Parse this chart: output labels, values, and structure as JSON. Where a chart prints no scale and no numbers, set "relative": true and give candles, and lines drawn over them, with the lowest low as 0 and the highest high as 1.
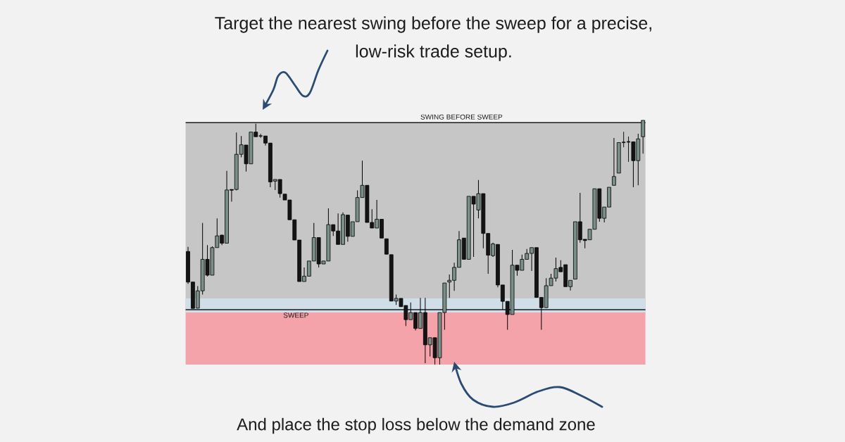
{
  "chart_data": {
    "type": "candlestick",
    "title": "Target the nearest swing before the sweep for a precise, low-risk trade setup.",
    "annotations": [
      "And place the stop loss below the demand zone"
    ],
    "relative": true,
    "categories": [
      null,
      null,
      null,
      null,
      null,
      null,
      null,
      null,
      null,
      null,
      null,
      null,
      null,
      null,
      null,
      null,
      null,
      null,
      null,
      null,
      null,
      null,
      null,
      null,
      null,
      null,
      null,
      null,
      null,
      null,
      null,
      null,
      null,
      null,
      null,
      null,
      null,
      null,
      null,
      null,
      null,
      null,
      null,
      null,
      null,
      null,
      null,
      null,
      null,
      null,
      null,
      null,
      null,
      null,
      null,
      null,
      null,
      null,
      null,
      null,
      null,
      null,
      null,
      null,
      null,
      null,
      null,
      null,
      null,
      null,
      null,
      null,
      null,
      null,
      null,
      null,
      null,
      null,
      null,
      null,
      null,
      null,
      null,
      null,
      null,
      null,
      null,
      null,
      null,
      null,
      null,
      null,
      null,
      null,
      null
    ],
    "ohlc": [
      [
        0.463,
        0.482,
        0.331,
        0.338
      ],
      [
        0.338,
        0.338,
        0.23,
        0.23
      ],
      [
        0.231,
        0.321,
        0.23,
        0.302
      ],
      [
        0.302,
        0.58,
        0.287,
        0.431
      ],
      [
        0.431,
        0.489,
        0.361,
        0.366
      ],
      [
        0.366,
        0.484,
        0.366,
        0.479
      ],
      [
        0.479,
        0.599,
        0.479,
        0.527
      ],
      [
        0.53,
        0.532,
        0.489,
        0.497
      ],
      [
        0.497,
        0.793,
        0.497,
        0.715
      ],
      [
        0.717,
        0.717,
        0.667,
        0.714
      ],
      [
        0.717,
        0.95,
        0.713,
        0.861
      ],
      [
        0.861,
        0.936,
        0.849,
        0.9
      ],
      [
        0.899,
        0.899,
        0.79,
        0.822
      ],
      [
        0.822,
        0.952,
        0.822,
        0.952
      ],
      [
        0.952,
        0.986,
        0.933,
        0.933
      ],
      [
        0.936,
        0.945,
        0.928,
        0.936
      ],
      [
        0.936,
        0.936,
        0.897,
        0.907
      ],
      [
        0.907,
        0.907,
        0.726,
        0.748
      ],
      [
        0.751,
        0.758,
        0.715,
        0.758
      ],
      [
        0.758,
        0.758,
        0.684,
        0.7
      ],
      [
        0.698,
        0.698,
        0.674,
        0.674
      ],
      [
        0.674,
        0.674,
        0.593,
        0.593
      ],
      [
        0.593,
        0.593,
        0.51,
        0.51
      ],
      [
        0.51,
        0.51,
        0.34,
        0.34
      ],
      [
        0.34,
        0.398,
        0.34,
        0.362
      ],
      [
        0.362,
        0.424,
        0.362,
        0.424
      ],
      [
        0.424,
        0.58,
        0.424,
        0.52
      ],
      [
        0.52,
        0.52,
        0.398,
        0.412
      ],
      [
        0.412,
        0.424,
        0.412,
        0.424
      ],
      [
        0.424,
        0.64,
        0.424,
        0.573
      ],
      [
        0.573,
        0.573,
        0.527,
        0.547
      ],
      [
        0.547,
        0.619,
        0.492,
        0.492
      ],
      [
        0.492,
        0.623,
        0.492,
        0.614
      ],
      [
        0.612,
        0.612,
        0.503,
        0.525
      ],
      [
        0.525,
        0.585,
        0.525,
        0.585
      ],
      [
        0.585,
        0.713,
        0.585,
        0.684
      ],
      [
        0.684,
        0.835,
        0.684,
        0.734
      ],
      [
        0.734,
        0.734,
        0.582,
        0.582
      ],
      [
        0.582,
        0.636,
        0.559,
        0.559
      ],
      [
        0.559,
        0.674,
        0.559,
        0.595
      ],
      [
        0.595,
        0.595,
        0.518,
        0.518
      ],
      [
        0.515,
        0.515,
        0.452,
        0.452
      ],
      [
        0.45,
        0.45,
        0.26,
        0.26
      ],
      [
        0.26,
        0.287,
        0.244,
        0.271
      ],
      [
        0.271,
        0.271,
        0.237,
        0.237
      ],
      [
        0.242,
        0.242,
        0.158,
        0.184
      ],
      [
        0.184,
        0.254,
        0.184,
        0.213
      ],
      [
        0.213,
        0.213,
        0.14,
        0.148
      ],
      [
        0.148,
        0.273,
        0.148,
        0.213
      ],
      [
        0.213,
        0.273,
        0.006,
        0.081
      ],
      [
        0.081,
        0.11,
        0.033,
        0.11
      ],
      [
        0.11,
        0.11,
        0,
        0.028
      ],
      [
        0.028,
        0.213,
        0,
        0.213
      ],
      [
        0.213,
        0.334,
        0.143,
        0.334
      ],
      [
        0.338,
        0.369,
        0.273,
        0.345
      ],
      [
        0.345,
        0.417,
        0.302,
        0.398
      ],
      [
        0.398,
        0.547,
        0.398,
        0.511
      ],
      [
        0.518,
        0.518,
        0.431,
        0.431
      ],
      [
        0.431,
        0.689,
        0.431,
        0.689
      ],
      [
        0.689,
        0.689,
        0.441,
        0.657
      ],
      [
        0.633,
        0.756,
        0.599,
        0.7
      ],
      [
        0.7,
        0.7,
        0.476,
        0.537
      ],
      [
        0.537,
        0.537,
        0.372,
        0.448
      ],
      [
        0.446,
        0.499,
        0.441,
        0.494
      ],
      [
        0.492,
        0.492,
        0.316,
        0.326
      ],
      [
        0.326,
        0.326,
        0.225,
        0.259
      ],
      [
        0.259,
        0.259,
        0.143,
        0.205
      ],
      [
        0.205,
        0.47,
        0.205,
        0.407
      ],
      [
        0.407,
        0.407,
        0.364,
        0.386
      ],
      [
        0.386,
        0.45,
        0.386,
        0.431
      ],
      [
        0.431,
        0.473,
        0.431,
        0.455
      ],
      [
        0.455,
        0.479,
        0.383,
        0.479
      ],
      [
        0.479,
        0.479,
        0.275,
        0.275
      ],
      [
        0.275,
        0.275,
        0.143,
        0.233
      ],
      [
        0.233,
        0.354,
        0.233,
        0.323
      ],
      [
        0.323,
        0.372,
        0.323,
        0.354
      ],
      [
        0.354,
        0.438,
        0.34,
        0.393
      ],
      [
        0.398,
        0.427,
        0.38,
        0.38
      ],
      [
        0.409,
        0.409,
        0.319,
        0.319
      ],
      [
        0.319,
        0.345,
        0.303,
        0.345
      ],
      [
        0.35,
        0.585,
        0.35,
        0.585
      ],
      [
        0.585,
        0.703,
        0.499,
        0.511
      ],
      [
        0.513,
        0.513,
        0.476,
        0.508
      ],
      [
        0.511,
        0.554,
        0.511,
        0.554
      ],
      [
        0.554,
        0.72,
        0.554,
        0.72
      ],
      [
        0.72,
        0.72,
        0.585,
        0.599
      ],
      [
        0.599,
        0.645,
        0.582,
        0.645
      ],
      [
        0.645,
        0.726,
        0.645,
        0.726
      ],
      [
        0.734,
        0.928,
        0.734,
        0.77
      ],
      [
        0.784,
        0.909,
        0.784,
        0.909
      ],
      [
        0.91,
        0.953,
        0.89,
        0.91
      ],
      [
        0.912,
        0.934,
        0.83,
        0.912
      ],
      [
        0.912,
        0.912,
        0.726,
        0.835
      ],
      [
        0.835,
        0.945,
        0.734,
        0.924
      ],
      [
        0.933,
        1,
        0.864,
        1
      ]
    ],
    "colors": [
      "#141414",
      "#141414",
      "#7b8f89",
      "#7b8f89",
      "#141414",
      "#7b8f89",
      "#7b8f89",
      "#141414",
      "#7b8f89",
      "#141414",
      "#7b8f89",
      "#7b8f89",
      "#141414",
      "#7b8f89",
      "#141414",
      "#141414",
      "#141414",
      "#141414",
      "#7b8f89",
      "#141414",
      "#141414",
      "#141414",
      "#141414",
      "#141414",
      "#7b8f89",
      "#7b8f89",
      "#7b8f89",
      "#141414",
      "#7b8f89",
      "#7b8f89",
      "#141414",
      "#141414",
      "#7b8f89",
      "#141414",
      "#7b8f89",
      "#7b8f89",
      "#7b8f89",
      "#141414",
      "#141414",
      "#7b8f89",
      "#141414",
      "#141414",
      "#141414",
      "#7b8f89",
      "#141414",
      "#141414",
      "#7b8f89",
      "#141414",
      "#7b8f89",
      "#141414",
      "#7b8f89",
      "#141414",
      "#7b8f89",
      "#7b8f89",
      "#7b8f89",
      "#7b8f89",
      "#7b8f89",
      "#141414",
      "#7b8f89",
      "#141414",
      "#7b8f89",
      "#141414",
      "#141414",
      "#7b8f89",
      "#141414",
      "#141414",
      "#141414",
      "#7b8f89",
      "#141414",
      "#7b8f89",
      "#7b8f89",
      "#7b8f89",
      "#141414",
      "#141414",
      "#7b8f89",
      "#7b8f89",
      "#7b8f89",
      "#141414",
      "#141414",
      "#7b8f89",
      "#7b8f89",
      "#141414",
      "#141414",
      "#7b8f89",
      "#7b8f89",
      "#141414",
      "#7b8f89",
      "#7b8f89",
      "#7b8f89",
      "#7b8f89",
      "#141414",
      "#141414",
      "#141414",
      "#7b8f89",
      "#7b8f89"
    ],
    "ref_lines": [
      {
        "axis": "y",
        "value": 0.991,
        "label": "SWING BEFORE SWEEP",
        "color": "#1a1a1a"
      },
      {
        "axis": "y",
        "value": 0.225,
        "label": "SWEEP",
        "color": "#1a1a1a"
      }
    ],
    "bands": [
      {
        "axis": "y",
        "from": 0.271,
        "to": 0.991,
        "color": "#c6c6c6"
      },
      {
        "axis": "y",
        "from": 0,
        "to": 0.271,
        "color": "#f5a3ab"
      },
      {
        "axis": "y",
        "from": 0.213,
        "to": 0.271,
        "color": "#cfdee7"
      }
    ]
  }
}
